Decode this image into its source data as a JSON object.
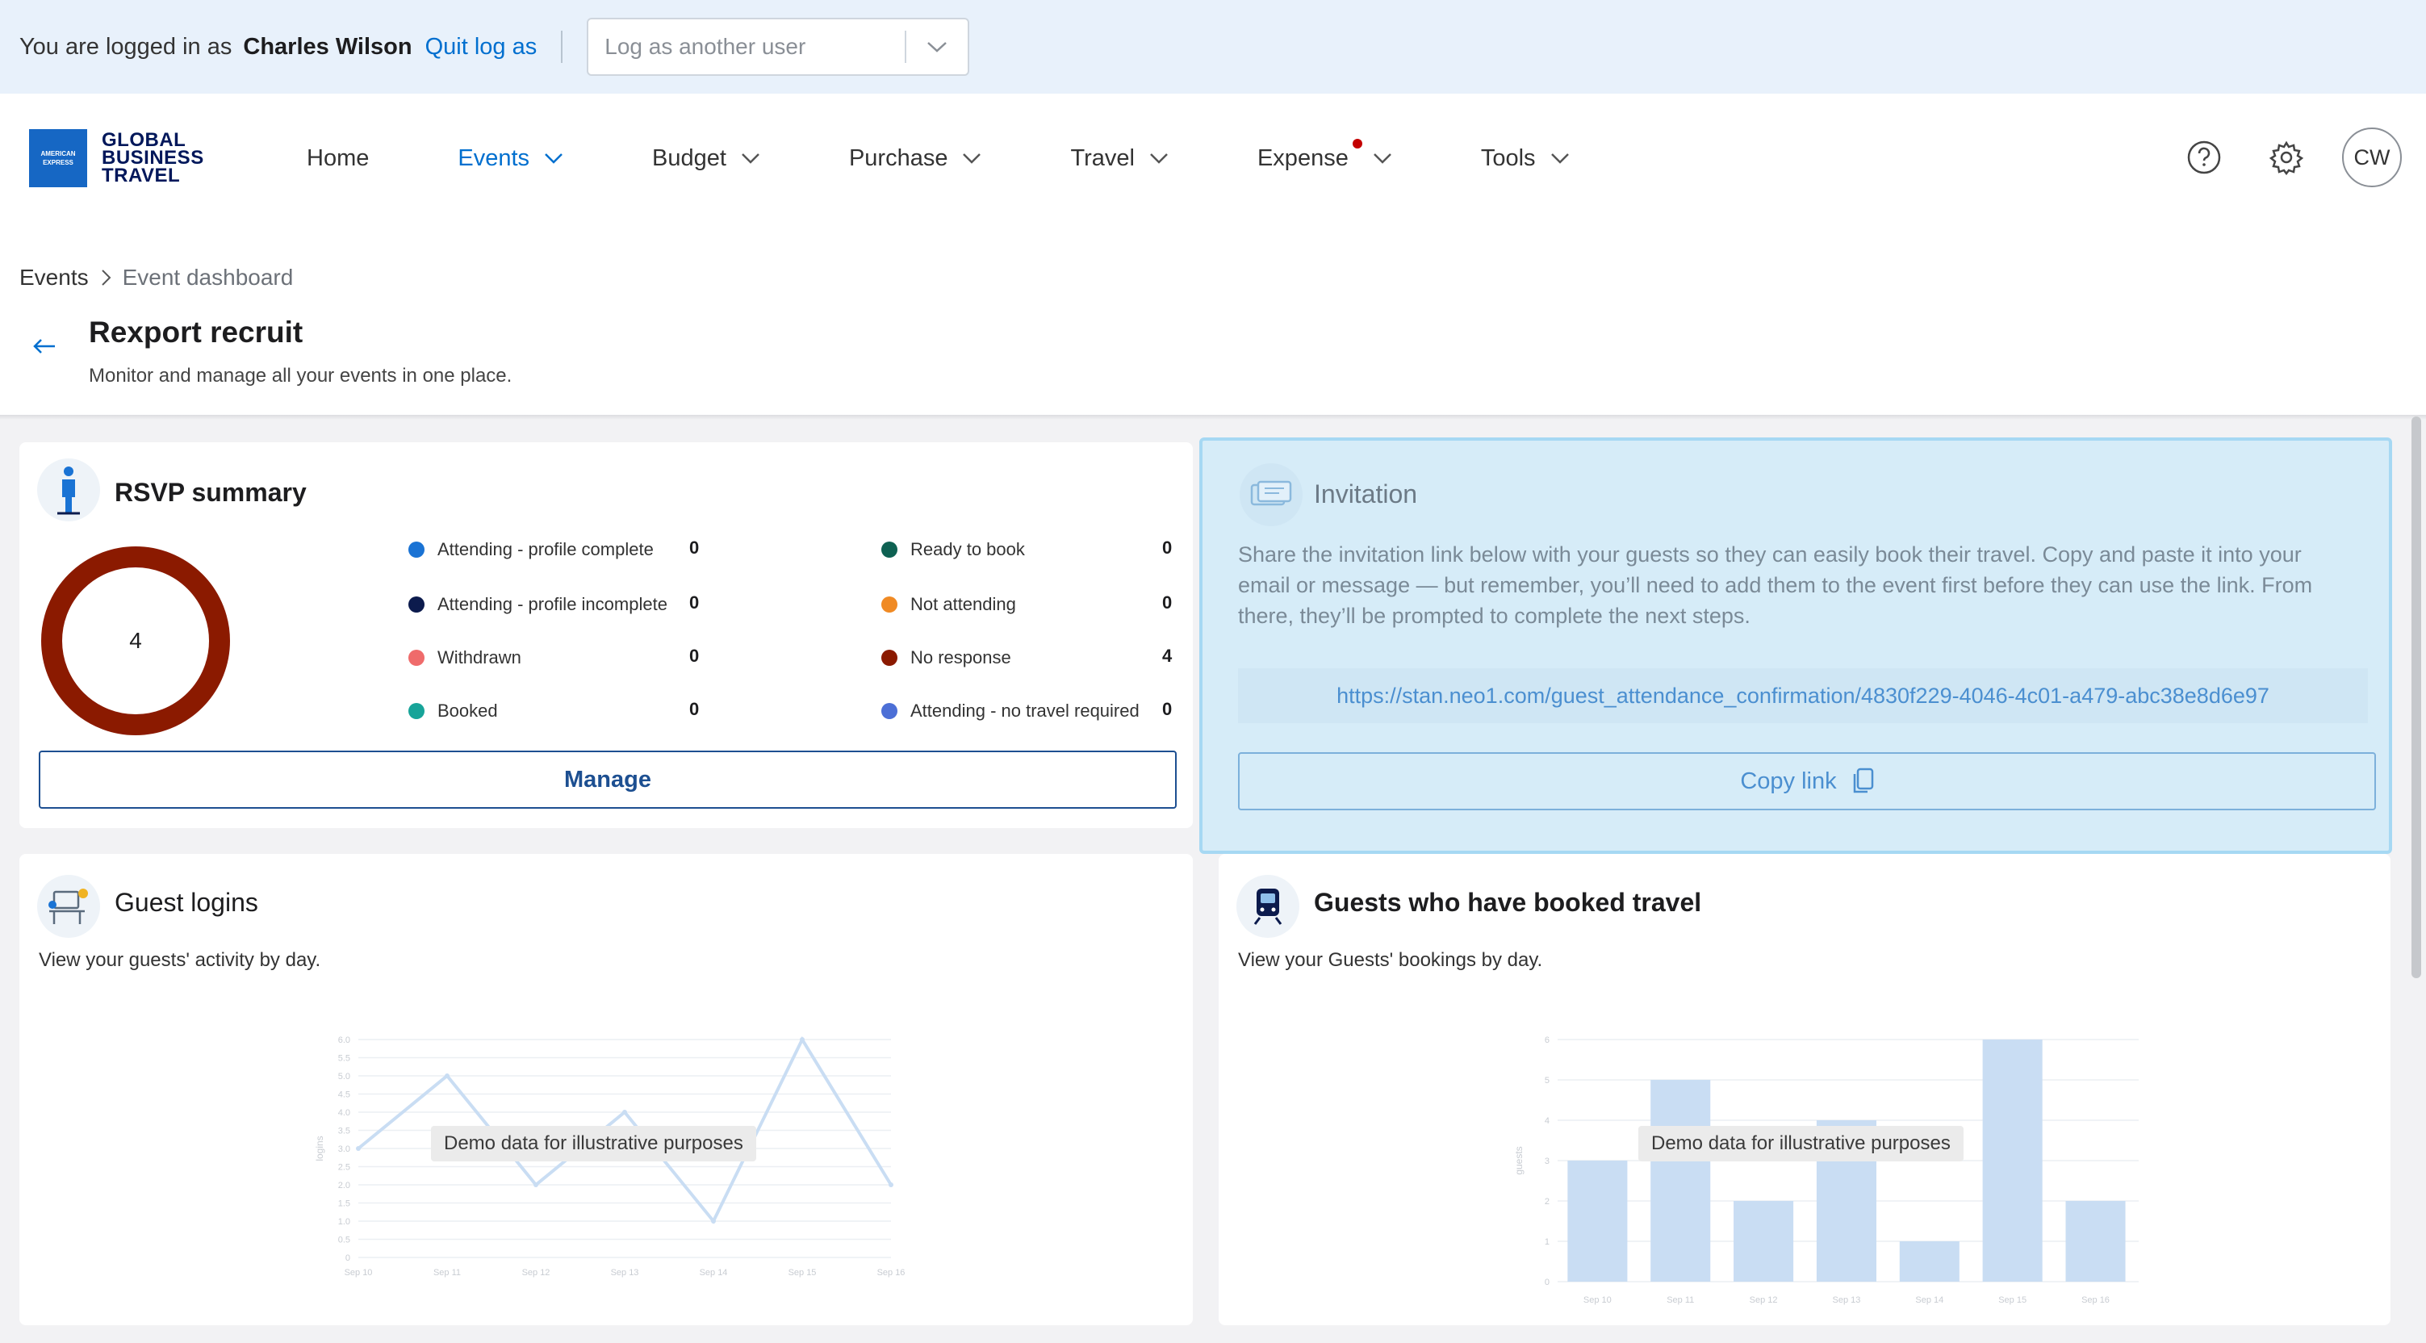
{
  "impersonation": {
    "prefix": "You are logged in as",
    "user_name": "Charles Wilson",
    "quit_label": "Quit log as",
    "select_placeholder": "Log as another user"
  },
  "header": {
    "logo_lines": [
      "GLOBAL",
      "BUSINESS",
      "TRAVEL"
    ],
    "logo_badge": "AMERICAN EXPRESS",
    "nav": [
      {
        "label": "Home",
        "dropdown": false,
        "active": false
      },
      {
        "label": "Events",
        "dropdown": true,
        "active": true
      },
      {
        "label": "Budget",
        "dropdown": true,
        "active": false
      },
      {
        "label": "Purchase",
        "dropdown": true,
        "active": false
      },
      {
        "label": "Travel",
        "dropdown": true,
        "active": false
      },
      {
        "label": "Expense",
        "dropdown": true,
        "active": false,
        "notification": true
      },
      {
        "label": "Tools",
        "dropdown": true,
        "active": false
      }
    ],
    "icons": [
      "help-icon",
      "settings-gear-icon"
    ],
    "avatar_initials": "CW"
  },
  "breadcrumb": {
    "root": "Events",
    "current": "Event dashboard"
  },
  "page": {
    "title": "Rexport recruit",
    "subtitle": "Monitor and manage all your events in one place."
  },
  "rsvp": {
    "title": "RSVP summary",
    "total": "4",
    "legend": [
      {
        "label": "Attending - profile complete",
        "value": "0",
        "color": "#1a73d4"
      },
      {
        "label": "Attending - profile incomplete",
        "value": "0",
        "color": "#0c1b4d"
      },
      {
        "label": "Withdrawn",
        "value": "0",
        "color": "#ef6b6b"
      },
      {
        "label": "Booked",
        "value": "0",
        "color": "#17a499"
      },
      {
        "label": "Ready to book",
        "value": "0",
        "color": "#0e6152"
      },
      {
        "label": "Not attending",
        "value": "0",
        "color": "#f08a24"
      },
      {
        "label": "No response",
        "value": "4",
        "color": "#8b1a00"
      },
      {
        "label": "Attending - no travel required",
        "value": "0",
        "color": "#4c6fd6"
      }
    ],
    "manage_label": "Manage"
  },
  "invitation": {
    "title": "Invitation",
    "description": "Share the invitation link below with your guests so they can easily book their travel. Copy and paste it into your email or message — but remember, you’ll need to add them to the event first before they can use the link. From there, they’ll be prompted to complete the next steps.",
    "link": "https://stan.neo1.com/guest_attendance_confirmation/4830f229-4046-4c01-a479-abc38e8d6e97",
    "copy_label": "Copy link"
  },
  "guest_logins": {
    "title": "Guest logins",
    "description": "View your guests' activity by day.",
    "demo_label": "Demo data for illustrative purposes"
  },
  "guests_booked": {
    "title": "Guests who have booked travel",
    "description": "View your Guests' bookings by day.",
    "demo_label": "Demo data for illustrative purposes"
  },
  "colors": {
    "brand_blue": "#006fcf",
    "navy": "#00175a",
    "donut_no_response": "#8b1a00",
    "invitation_highlight": "#d6ecf8",
    "demo_chart": "#c9ddf3"
  },
  "chart_data": [
    {
      "type": "line",
      "title": "",
      "ylabel": "logins",
      "categories": [
        "Sep 10",
        "Sep 11",
        "Sep 12",
        "Sep 13",
        "Sep 14",
        "Sep 15",
        "Sep 16"
      ],
      "values": [
        3.0,
        5.0,
        2.0,
        4.0,
        1.0,
        6.0,
        2.0
      ],
      "ylim": [
        0,
        6
      ],
      "yticks": [
        "0",
        "0.5",
        "1.0",
        "1.5",
        "2.0",
        "2.5",
        "3.0",
        "3.5",
        "4.0",
        "4.5",
        "5.0",
        "5.5",
        "6.0"
      ]
    },
    {
      "type": "bar",
      "title": "",
      "ylabel": "guests",
      "categories": [
        "Sep 10",
        "Sep 11",
        "Sep 12",
        "Sep 13",
        "Sep 14",
        "Sep 15",
        "Sep 16"
      ],
      "values": [
        3,
        5,
        2,
        4,
        1,
        6,
        2
      ],
      "ylim": [
        0,
        6
      ],
      "yticks": [
        "0",
        "1",
        "2",
        "3",
        "4",
        "5",
        "6"
      ]
    }
  ]
}
